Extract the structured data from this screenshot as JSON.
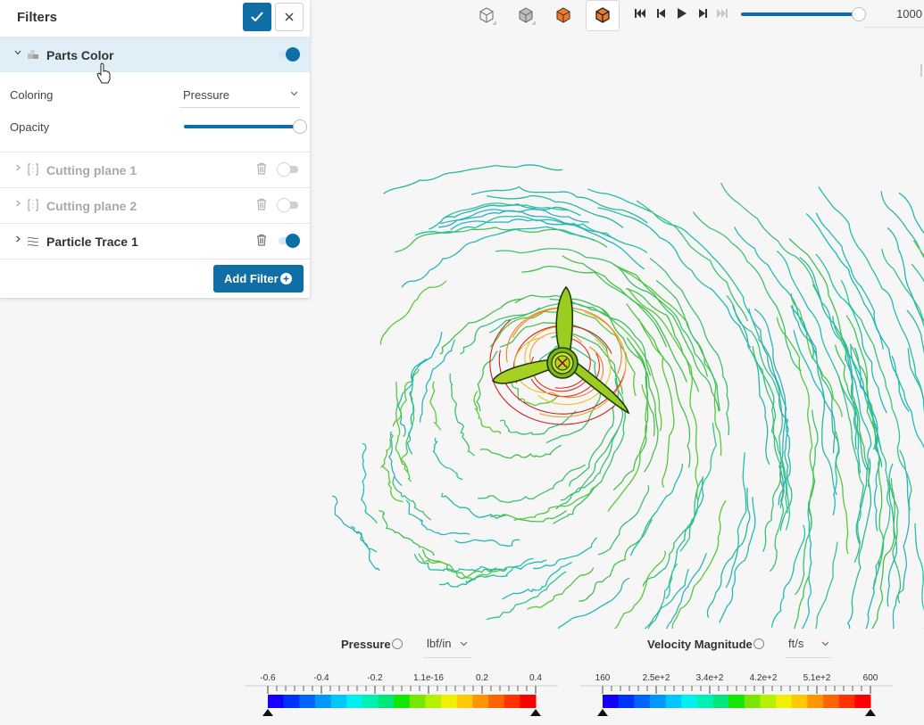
{
  "filters_panel": {
    "title": "Filters",
    "items": [
      {
        "label": "Parts Color",
        "state": "on",
        "expanded": true,
        "icon": "parts-color-icon"
      },
      {
        "label": "Cutting plane 1",
        "state": "off",
        "disabled": true,
        "icon": "cutting-plane-icon"
      },
      {
        "label": "Cutting plane 2",
        "state": "off",
        "disabled": true,
        "icon": "cutting-plane-icon"
      },
      {
        "label": "Particle Trace 1",
        "state": "on",
        "icon": "particle-trace-icon"
      }
    ],
    "properties": {
      "coloring_label": "Coloring",
      "coloring_value": "Pressure",
      "opacity_label": "Opacity",
      "opacity_value": 1.0
    },
    "add_filter_label": "Add Filter"
  },
  "toolbar": {
    "view_icons": [
      "view-isometric-icon",
      "view-solid-icon",
      "view-highlight-icon",
      "view-selected-icon"
    ],
    "media_icons": [
      "skip-start-icon",
      "step-back-icon",
      "play-icon",
      "step-forward-icon",
      "skip-end-icon"
    ],
    "timeline_fraction": 0.97,
    "frame": "1000"
  },
  "legends": [
    {
      "title": "Pressure",
      "unit": "lbf/in",
      "ticks": [
        "-0.6",
        "-0.4",
        "-0.2",
        "1.1e-16",
        "0.2",
        "0.4"
      ]
    },
    {
      "title": "Velocity Magnitude",
      "unit": "ft/s",
      "ticks": [
        "160",
        "2.5e+2",
        "3.4e+2",
        "4.2e+2",
        "5.1e+2",
        "600"
      ]
    }
  ],
  "colors": {
    "accent": "#0f6ea6",
    "active_row": "#dfeef7",
    "colormap": [
      "#1400ff",
      "#0032ff",
      "#0064ff",
      "#0096ff",
      "#00c8ff",
      "#00f0f0",
      "#00f0b4",
      "#00e678",
      "#14e600",
      "#78e600",
      "#b4f000",
      "#f0f000",
      "#ffc800",
      "#ff9600",
      "#ff6400",
      "#ff3200",
      "#ff0000"
    ]
  }
}
